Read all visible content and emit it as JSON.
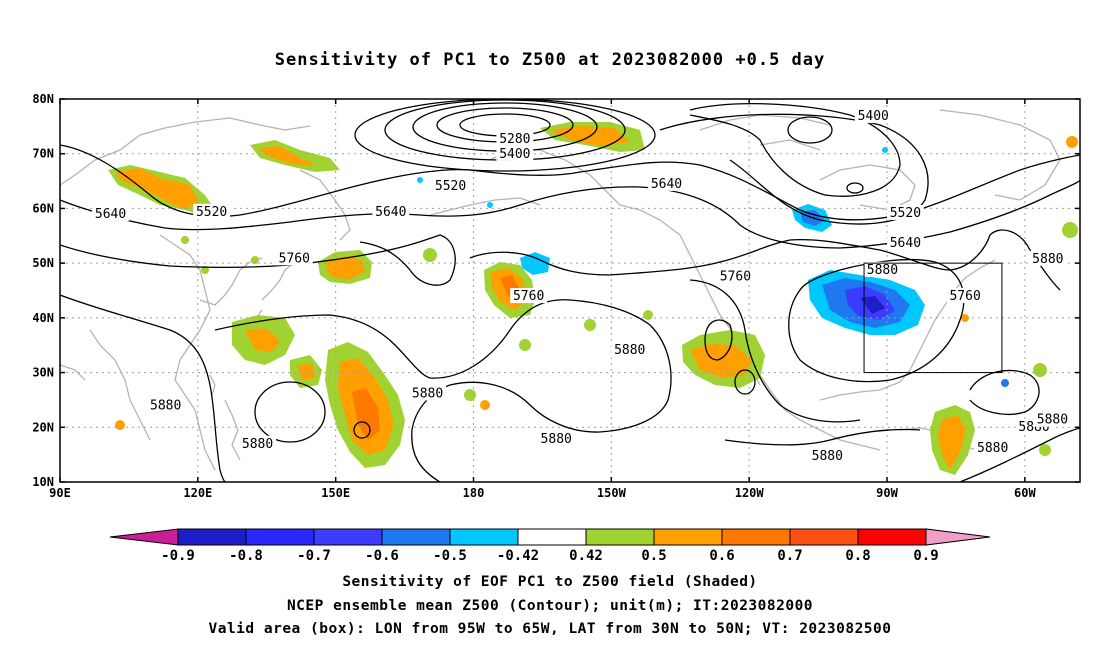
{
  "title": "Sensitivity of PC1 to Z500 at 2023082000 +0.5 day",
  "map": {
    "lat_labels": [
      "80N",
      "70N",
      "60N",
      "50N",
      "40N",
      "30N",
      "20N",
      "10N"
    ],
    "lon_labels": [
      "90E",
      "120E",
      "150E",
      "180",
      "150W",
      "120W",
      "90W",
      "60W"
    ],
    "lat_values": [
      80,
      70,
      60,
      50,
      40,
      30,
      20,
      10
    ],
    "lon_values": [
      90,
      120,
      150,
      180,
      210,
      240,
      270,
      300
    ],
    "lon_range": [
      90,
      312
    ],
    "lat_range": [
      10,
      80
    ],
    "grid": "dotted",
    "valid_box": {
      "lon": [
        265,
        295
      ],
      "lat": [
        30,
        50
      ]
    }
  },
  "contours": {
    "labels": [
      {
        "text": "5280",
        "lon": 189,
        "lat": 72.5
      },
      {
        "text": "5400",
        "lon": 189,
        "lat": 69.8
      },
      {
        "text": "5400",
        "lon": 267,
        "lat": 76.7
      },
      {
        "text": "5520",
        "lon": 123,
        "lat": 59.2
      },
      {
        "text": "5520",
        "lon": 175,
        "lat": 63.9
      },
      {
        "text": "5520",
        "lon": 274,
        "lat": 59.0
      },
      {
        "text": "5640",
        "lon": 101,
        "lat": 58.8
      },
      {
        "text": "5640",
        "lon": 162,
        "lat": 59.2
      },
      {
        "text": "5640",
        "lon": 222,
        "lat": 64.3
      },
      {
        "text": "5640",
        "lon": 274,
        "lat": 53.5
      },
      {
        "text": "5760",
        "lon": 141,
        "lat": 50.7
      },
      {
        "text": "5760",
        "lon": 192,
        "lat": 43.8
      },
      {
        "text": "5760",
        "lon": 237,
        "lat": 47.4
      },
      {
        "text": "5760",
        "lon": 287,
        "lat": 43.8
      },
      {
        "text": "5880",
        "lon": 269,
        "lat": 48.6
      },
      {
        "text": "5880",
        "lon": 305,
        "lat": 50.6
      },
      {
        "text": "5880",
        "lon": 214,
        "lat": 33.9
      },
      {
        "text": "5880",
        "lon": 170,
        "lat": 26.0
      },
      {
        "text": "5880",
        "lon": 113,
        "lat": 23.8
      },
      {
        "text": "5880",
        "lon": 133,
        "lat": 16.8
      },
      {
        "text": "5880",
        "lon": 198,
        "lat": 17.7
      },
      {
        "text": "5880",
        "lon": 257,
        "lat": 14.6
      },
      {
        "text": "5880",
        "lon": 293,
        "lat": 16.0
      },
      {
        "text": "5880",
        "lon": 302,
        "lat": 19.9
      },
      {
        "text": "5880",
        "lon": 306,
        "lat": 21.2
      }
    ]
  },
  "colorbar": {
    "labels": [
      "-0.9",
      "-0.8",
      "-0.7",
      "-0.6",
      "-0.5",
      "-0.42",
      "0.42",
      "0.5",
      "0.6",
      "0.7",
      "0.8",
      "0.9"
    ],
    "colors": [
      "#1e1ec8",
      "#2828ff",
      "#3c3cff",
      "#1e78f0",
      "#00c8ff",
      "#ffffff",
      "#a0d232",
      "#ffa000",
      "#ff7800",
      "#ff5014",
      "#ff0000"
    ],
    "left_arrow_color": "#c81e96",
    "right_arrow_color": "#f0a0c8"
  },
  "captions": [
    "Sensitivity of EOF PC1 to Z500 field (Shaded)",
    "NCEP ensemble mean Z500 (Contour); unit(m); IT:2023082000",
    "Valid area (box): LON from 95W to 65W, LAT from 30N to 50N; VT: 2023082500"
  ]
}
